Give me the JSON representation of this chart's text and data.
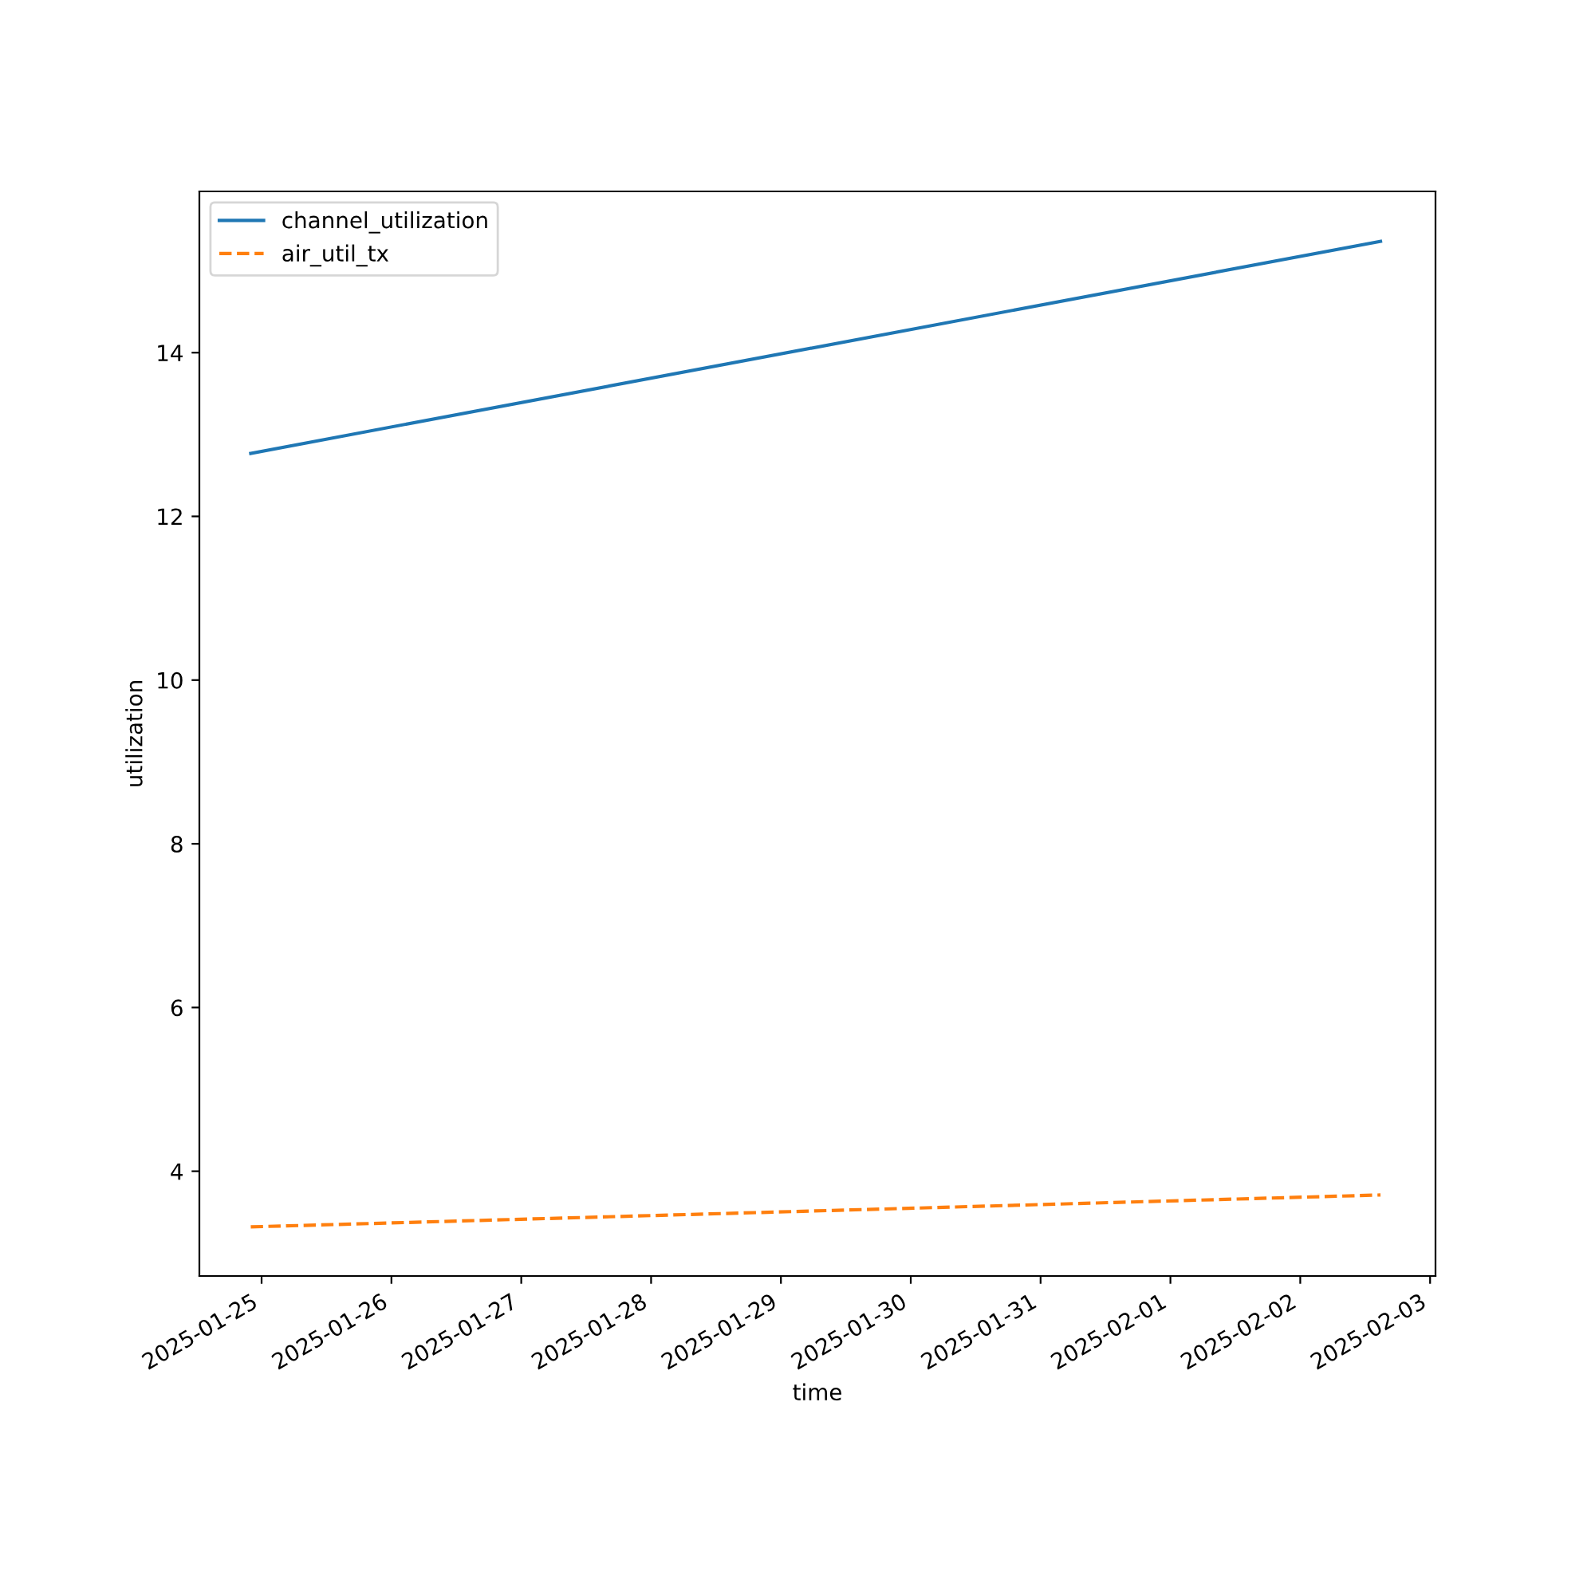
{
  "chart_data": {
    "type": "line",
    "xlabel": "time",
    "ylabel": "utilization",
    "x": [
      "2025-01-24T22:00",
      "2025-02-02T14:50"
    ],
    "series": [
      {
        "name": "channel_utilization",
        "color": "#1f77b4",
        "values": [
          12.77,
          15.36
        ],
        "line_style": "solid"
      },
      {
        "name": "air_util_tx",
        "color": "#ff7f0e",
        "values": [
          3.32,
          3.71
        ],
        "line_style": "dashed"
      }
    ],
    "xlim": [
      "2025-01-24T12:30",
      "2025-02-03T01:00"
    ],
    "xticks": [
      "2025-01-25",
      "2025-01-26",
      "2025-01-27",
      "2025-01-28",
      "2025-01-29",
      "2025-01-30",
      "2025-01-31",
      "2025-02-01",
      "2025-02-02",
      "2025-02-03"
    ],
    "ylim": [
      2.72,
      15.97
    ],
    "yticks": [
      4,
      6,
      8,
      10,
      12,
      14
    ],
    "legend": "top left",
    "grid": false,
    "marker": "none"
  }
}
